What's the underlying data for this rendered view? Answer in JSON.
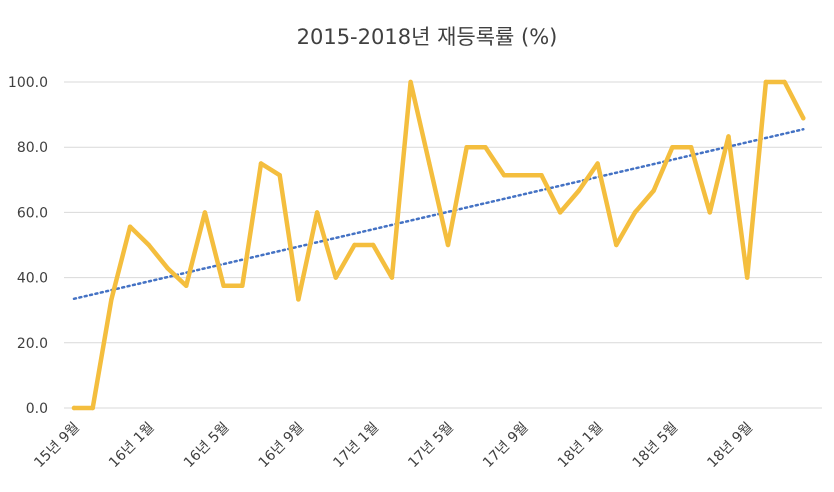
{
  "chart_data": {
    "type": "line",
    "title": "2015-2018년 재등록률 (%)",
    "xlabel": "",
    "ylabel": "",
    "ylim": [
      0,
      100
    ],
    "yticks": [
      "0.0",
      "20.0",
      "40.0",
      "60.0",
      "80.0",
      "100.0"
    ],
    "x_tick_labels": [
      {
        "index": 0,
        "label": "15년 9월"
      },
      {
        "index": 4,
        "label": "16년 1월"
      },
      {
        "index": 8,
        "label": "16년 5월"
      },
      {
        "index": 12,
        "label": "16년 9월"
      },
      {
        "index": 16,
        "label": "17년 1월"
      },
      {
        "index": 20,
        "label": "17년 5월"
      },
      {
        "index": 24,
        "label": "17년 9월"
      },
      {
        "index": 28,
        "label": "18년 1월"
      },
      {
        "index": 32,
        "label": "18년 5월"
      },
      {
        "index": 36,
        "label": "18년 9월"
      }
    ],
    "series": [
      {
        "color": "#F4BE3E",
        "values": [
          0,
          0,
          33.3,
          55.6,
          50,
          42.9,
          37.5,
          60,
          37.5,
          37.5,
          75,
          71.4,
          33.3,
          60,
          40,
          50,
          50,
          40,
          100,
          75,
          50,
          80,
          80,
          71.4,
          71.4,
          71.4,
          60,
          66.7,
          75,
          50,
          60,
          66.7,
          80,
          80,
          60,
          83.3,
          40,
          100,
          100,
          88.9
        ]
      }
    ],
    "trendline": {
      "type": "linear",
      "color": "#4472C4",
      "style": "dotted",
      "start": 33.5,
      "end": 85.5
    },
    "grid": true,
    "gridline_color": "#D9D9D9"
  }
}
